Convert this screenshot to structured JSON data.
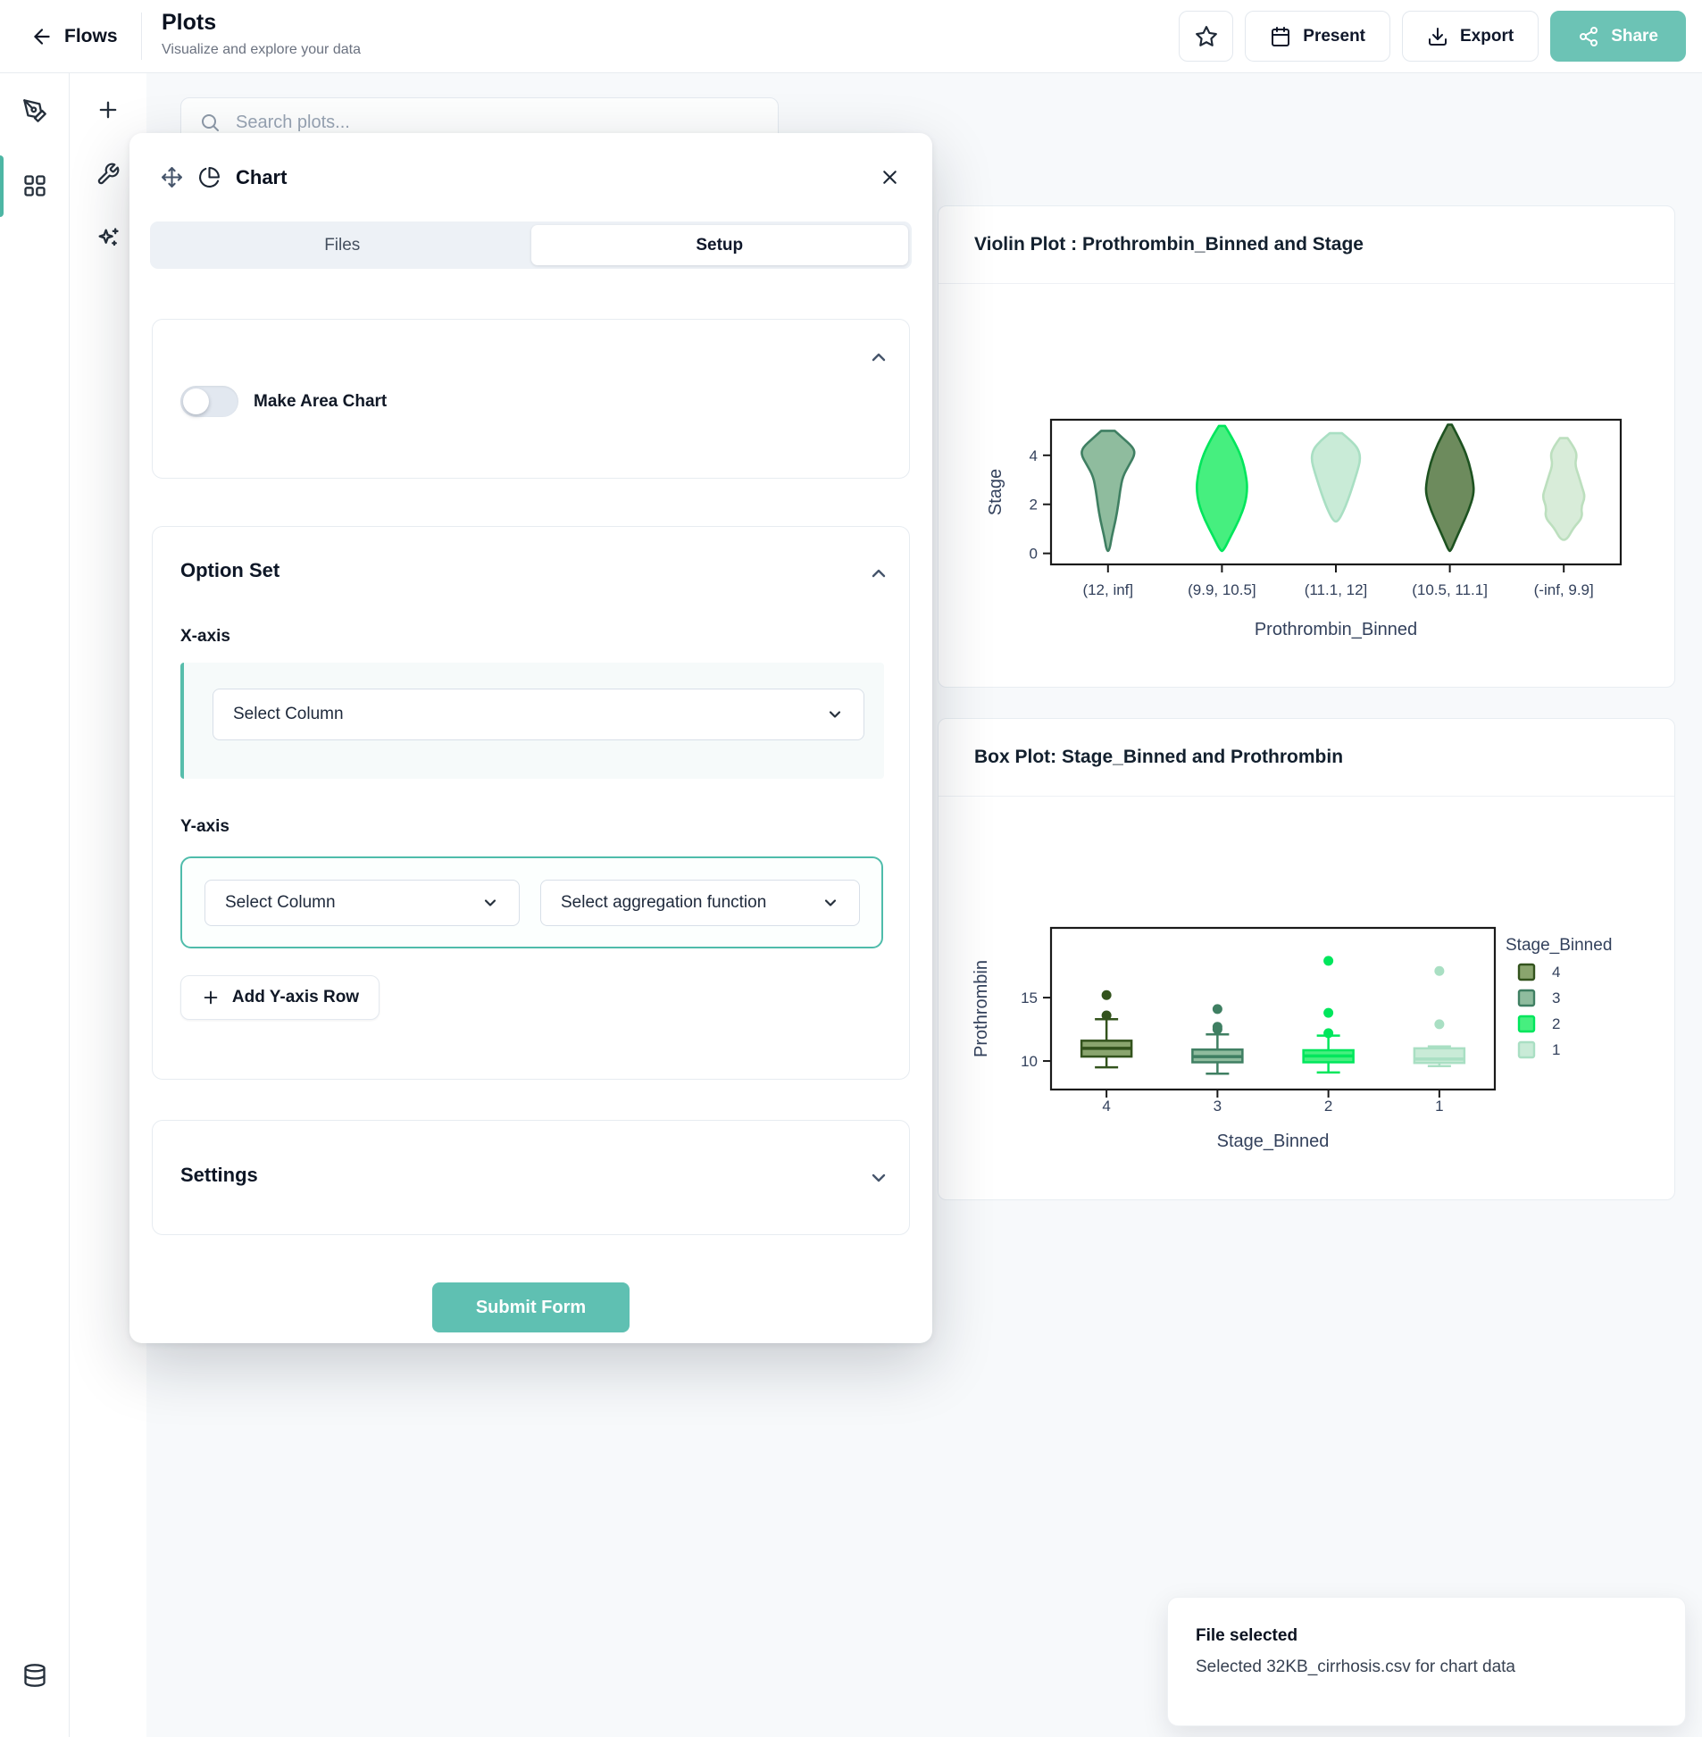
{
  "header": {
    "back_label": "Flows",
    "title": "Plots",
    "subtitle": "Visualize and explore your data",
    "present_label": "Present",
    "export_label": "Export",
    "share_label": "Share",
    "accent_color": "#6cc3b5"
  },
  "search": {
    "placeholder": "Search plots..."
  },
  "modal": {
    "title": "Chart",
    "tabs": {
      "files": "Files",
      "setup": "Setup"
    },
    "toggle_label": "Make Area Chart",
    "toggle_state": "off",
    "option_set": {
      "title": "Option Set",
      "x_axis_label": "X-axis",
      "x_select_value": "Select Column",
      "y_axis_label": "Y-axis",
      "y_select_value": "Select Column",
      "y_agg_select_value": "Select aggregation function",
      "add_row_label": "Add Y-axis Row"
    },
    "settings_title": "Settings",
    "submit_label": "Submit Form"
  },
  "toast": {
    "title": "File selected",
    "message": "Selected 32KB_cirrhosis.csv for chart data"
  },
  "chart_data": [
    {
      "type": "violin",
      "title": "Violin Plot : Prothrombin_Binned and Stage",
      "xlabel": "Prothrombin_Binned",
      "ylabel": "Stage",
      "categories": [
        "(12, inf]",
        "(9.9, 10.5]",
        "(11.1, 12]",
        "(10.5, 11.1]",
        "(-inf, 9.9]"
      ],
      "yticks": [
        4,
        2,
        0
      ],
      "ylim": [
        -0.45,
        5.45
      ],
      "grid": false,
      "series": [
        {
          "category": "(12, inf]",
          "fill": "#8fbc9e",
          "stroke": "#3f7f62",
          "width": 1.0,
          "span": [
            0.1,
            5.0
          ],
          "profile": [
            [
              0,
              0.25
            ],
            [
              0.06,
              0.55
            ],
            [
              0.14,
              0.95
            ],
            [
              0.2,
              1.0
            ],
            [
              0.28,
              0.8
            ],
            [
              0.38,
              0.55
            ],
            [
              0.5,
              0.45
            ],
            [
              0.62,
              0.38
            ],
            [
              0.75,
              0.28
            ],
            [
              0.88,
              0.14
            ],
            [
              1,
              0.05
            ]
          ]
        },
        {
          "category": "(9.9, 10.5]",
          "fill": "#46ef7f",
          "stroke": "#00e65c",
          "width": 0.95,
          "span": [
            0.1,
            5.2
          ],
          "profile": [
            [
              0,
              0.12
            ],
            [
              0.1,
              0.42
            ],
            [
              0.25,
              0.78
            ],
            [
              0.4,
              0.95
            ],
            [
              0.5,
              1.0
            ],
            [
              0.62,
              0.92
            ],
            [
              0.75,
              0.68
            ],
            [
              0.88,
              0.35
            ],
            [
              1,
              0.06
            ]
          ]
        },
        {
          "category": "(11.1, 12]",
          "fill": "#c9ebd7",
          "stroke": "#a9dfc3",
          "width": 0.92,
          "span": [
            1.3,
            4.9
          ],
          "profile": [
            [
              0,
              0.25
            ],
            [
              0.08,
              0.6
            ],
            [
              0.18,
              0.92
            ],
            [
              0.3,
              1.0
            ],
            [
              0.45,
              0.85
            ],
            [
              0.6,
              0.68
            ],
            [
              0.75,
              0.5
            ],
            [
              0.9,
              0.28
            ],
            [
              1,
              0.08
            ]
          ]
        },
        {
          "category": "(10.5, 11.1]",
          "fill": "#6d8b5d",
          "stroke": "#1d5220",
          "width": 0.9,
          "span": [
            0.1,
            5.25
          ],
          "profile": [
            [
              0,
              0.08
            ],
            [
              0.15,
              0.5
            ],
            [
              0.3,
              0.8
            ],
            [
              0.45,
              0.97
            ],
            [
              0.55,
              1.0
            ],
            [
              0.68,
              0.78
            ],
            [
              0.8,
              0.5
            ],
            [
              0.92,
              0.22
            ],
            [
              1,
              0.04
            ]
          ]
        },
        {
          "category": "(-inf, 9.9]",
          "fill": "#d8ecd9",
          "stroke": "#bcdfbe",
          "width": 0.8,
          "span": [
            0.55,
            4.7
          ],
          "profile": [
            [
              0,
              0.18
            ],
            [
              0.08,
              0.45
            ],
            [
              0.16,
              0.62
            ],
            [
              0.26,
              0.52
            ],
            [
              0.36,
              0.68
            ],
            [
              0.48,
              0.85
            ],
            [
              0.58,
              1.0
            ],
            [
              0.68,
              0.8
            ],
            [
              0.78,
              0.88
            ],
            [
              0.88,
              0.45
            ],
            [
              1,
              0.15
            ]
          ]
        }
      ]
    },
    {
      "type": "box",
      "title": "Box Plot: Stage_Binned and Prothrombin",
      "xlabel": "Stage_Binned",
      "ylabel": "Prothrombin",
      "categories": [
        "4",
        "3",
        "2",
        "1"
      ],
      "yticks": [
        15,
        10
      ],
      "ylim": [
        7.75,
        20.5
      ],
      "grid": false,
      "legend": {
        "title": "Stage_Binned",
        "position": "right",
        "items": [
          {
            "label": "4",
            "fill": "#8aa56e",
            "stroke": "#33531d"
          },
          {
            "label": "3",
            "fill": "#8fbc9e",
            "stroke": "#3f7f62"
          },
          {
            "label": "2",
            "fill": "#46ef7f",
            "stroke": "#00e65c"
          },
          {
            "label": "1",
            "fill": "#c9ebd7",
            "stroke": "#a9dfc3"
          }
        ]
      },
      "series": [
        {
          "category": "4",
          "fill": "#8aa56e",
          "stroke": "#33531d",
          "q1": 10.35,
          "median": 11.0,
          "q3": 11.6,
          "whisker_low": 9.5,
          "whisker_high": 13.3,
          "outliers": [
            13.6,
            15.2
          ]
        },
        {
          "category": "3",
          "fill": "#8fbc9e",
          "stroke": "#3f7f62",
          "q1": 9.9,
          "median": 10.35,
          "q3": 10.9,
          "whisker_low": 9.0,
          "whisker_high": 12.1,
          "outliers": [
            12.5,
            12.7,
            14.1
          ]
        },
        {
          "category": "2",
          "fill": "#46ef7f",
          "stroke": "#00e65c",
          "q1": 9.9,
          "median": 10.4,
          "q3": 10.85,
          "whisker_low": 9.1,
          "whisker_high": 12.0,
          "outliers": [
            12.2,
            13.8,
            17.9
          ]
        },
        {
          "category": "1",
          "fill": "#c9ebd7",
          "stroke": "#a9dfc3",
          "q1": 9.85,
          "median": 10.15,
          "q3": 11.0,
          "whisker_low": 9.6,
          "whisker_high": 11.15,
          "outliers": [
            12.9,
            17.1
          ]
        }
      ]
    }
  ]
}
